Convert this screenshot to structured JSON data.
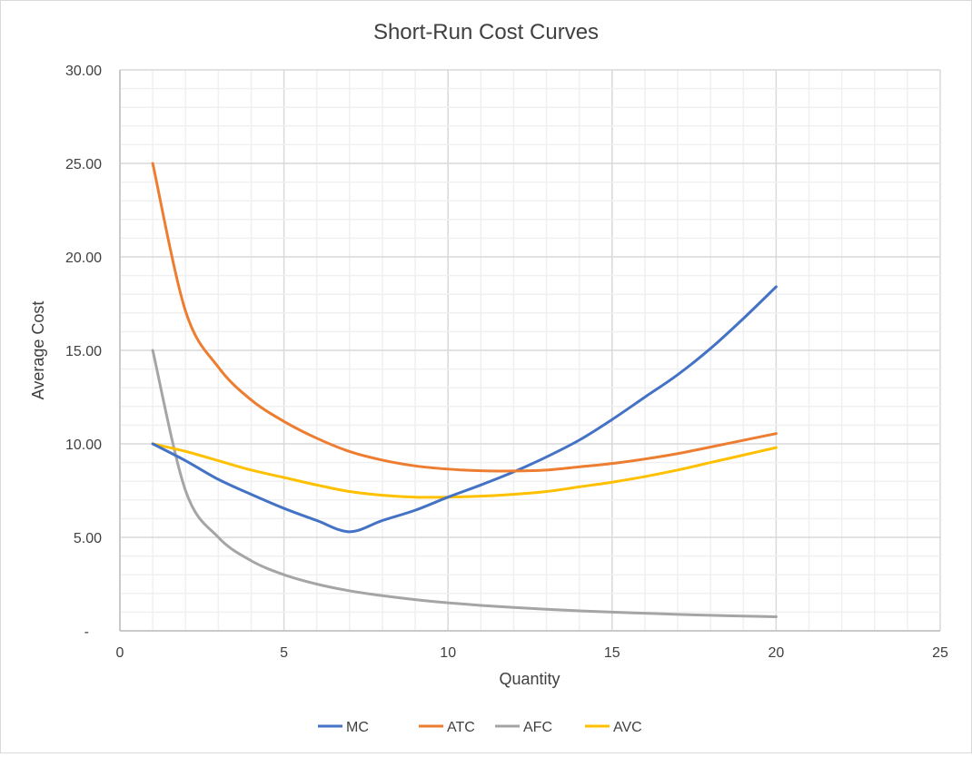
{
  "chart_data": {
    "type": "line",
    "title": "Short-Run Cost Curves",
    "xlabel": "Quantity",
    "ylabel": "Average Cost",
    "xlim": [
      0,
      25
    ],
    "ylim": [
      0,
      30
    ],
    "x_ticks": [
      "0",
      "5",
      "10",
      "15",
      "20",
      "25"
    ],
    "y_ticks": [
      "-",
      "5.00",
      "10.00",
      "15.00",
      "20.00",
      "25.00",
      "30.00"
    ],
    "grid": true,
    "minor_grid": true,
    "legend_position": "bottom",
    "smoothed": true,
    "x": [
      1,
      2,
      3,
      4,
      5,
      6,
      7,
      8,
      9,
      10,
      11,
      12,
      13,
      14,
      15,
      16,
      17,
      18,
      19,
      20
    ],
    "series": [
      {
        "name": "MC",
        "color": "#4472c4",
        "values": [
          10,
          9.1,
          8.1,
          7.3,
          6.55,
          5.9,
          5.3,
          5.9,
          6.45,
          7.15,
          7.8,
          8.5,
          9.3,
          10.2,
          11.3,
          12.5,
          13.7,
          15.1,
          16.7,
          18.4
        ]
      },
      {
        "name": "ATC",
        "color": "#ed7d31",
        "values": [
          25,
          17.1,
          14.1,
          12.35,
          11.2,
          10.3,
          9.59,
          9.13,
          8.82,
          8.65,
          8.56,
          8.55,
          8.6,
          8.77,
          8.95,
          9.19,
          9.48,
          9.83,
          10.19,
          10.55
        ]
      },
      {
        "name": "AFC",
        "color": "#a5a5a5",
        "values": [
          15,
          7.5,
          5,
          3.75,
          3,
          2.5,
          2.14,
          1.88,
          1.67,
          1.5,
          1.36,
          1.25,
          1.15,
          1.07,
          1,
          0.94,
          0.88,
          0.83,
          0.79,
          0.75
        ]
      },
      {
        "name": "AVC",
        "color": "#ffc000",
        "values": [
          10,
          9.6,
          9.1,
          8.6,
          8.2,
          7.8,
          7.45,
          7.25,
          7.15,
          7.15,
          7.2,
          7.3,
          7.45,
          7.7,
          7.95,
          8.25,
          8.6,
          9.0,
          9.4,
          9.8
        ]
      }
    ]
  }
}
